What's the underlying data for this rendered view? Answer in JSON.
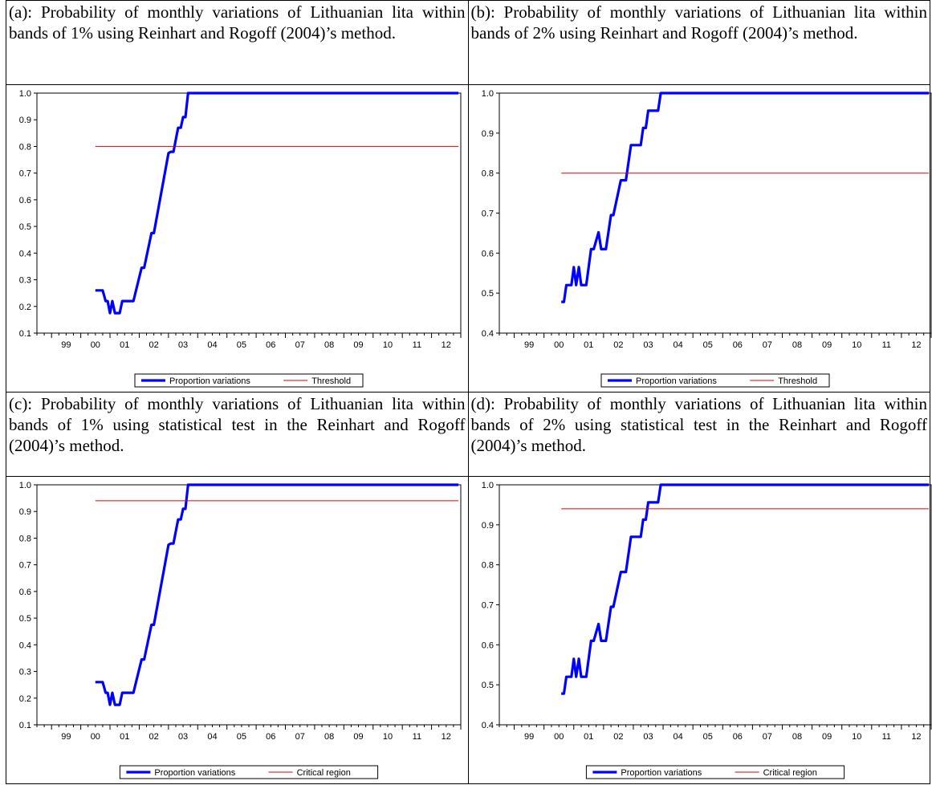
{
  "panels": [
    {
      "caption": "(a): Probability of monthly variations of Lithuanian lita within bands of 1% using Reinhart and Rogoff (2004)’s method."
    },
    {
      "caption": "(b): Probability of monthly variations of Lithuanian lita within bands of 2% using Reinhart and Rogoff (2004)’s method."
    },
    {
      "caption": "(c): Probability of monthly variations of Lithuanian lita within bands of 1% using statistical test in the Reinhart and Rogoff (2004)’s method."
    },
    {
      "caption": "(d): Probability of monthly variations of Lithuanian lita within bands of 2% using statistical test in the Reinhart and Rogoff (2004)’s method."
    }
  ],
  "colors": {
    "series": "#0000ff",
    "reference": "#e00000",
    "axis": "#000000"
  },
  "chart_data": [
    {
      "type": "line",
      "title": "",
      "xlabel": "",
      "ylabel": "",
      "xlim": [
        1998.5,
        2013.0
      ],
      "ylim": [
        0.1,
        1.0
      ],
      "yticks": [
        "0.1",
        "0.2",
        "0.3",
        "0.4",
        "0.5",
        "0.6",
        "0.7",
        "0.8",
        "0.9",
        "1.0"
      ],
      "xticks": [
        "99",
        "00",
        "01",
        "02",
        "03",
        "04",
        "05",
        "06",
        "07",
        "08",
        "09",
        "10",
        "11",
        "12"
      ],
      "legend": "bottom-center",
      "grid": false,
      "series": [
        {
          "name": "Proportion variations",
          "points": [
            [
              2000.5,
              0.26
            ],
            [
              2000.75,
              0.26
            ],
            [
              2000.85,
              0.22
            ],
            [
              2000.92,
              0.22
            ],
            [
              2001.0,
              0.175
            ],
            [
              2001.08,
              0.22
            ],
            [
              2001.17,
              0.175
            ],
            [
              2001.33,
              0.175
            ],
            [
              2001.42,
              0.22
            ],
            [
              2001.58,
              0.22
            ],
            [
              2001.8,
              0.22
            ],
            [
              2002.08,
              0.345
            ],
            [
              2002.17,
              0.345
            ],
            [
              2002.42,
              0.475
            ],
            [
              2002.5,
              0.475
            ],
            [
              2003.0,
              0.775
            ],
            [
              2003.08,
              0.78
            ],
            [
              2003.17,
              0.78
            ],
            [
              2003.33,
              0.87
            ],
            [
              2003.42,
              0.87
            ],
            [
              2003.5,
              0.91
            ],
            [
              2003.58,
              0.91
            ],
            [
              2003.67,
              1.0
            ],
            [
              2012.92,
              1.0
            ]
          ]
        },
        {
          "name": "Threshold",
          "points": [
            [
              2000.5,
              0.8
            ],
            [
              2012.92,
              0.8
            ]
          ]
        }
      ]
    },
    {
      "type": "line",
      "title": "",
      "xlabel": "",
      "ylabel": "",
      "xlim": [
        1998.5,
        2013.0
      ],
      "ylim": [
        0.4,
        1.0
      ],
      "yticks": [
        "0.4",
        "0.5",
        "0.6",
        "0.7",
        "0.8",
        "0.9",
        "1.0"
      ],
      "xticks": [
        "99",
        "00",
        "01",
        "02",
        "03",
        "04",
        "05",
        "06",
        "07",
        "08",
        "09",
        "10",
        "11",
        "12"
      ],
      "legend": "bottom-center",
      "grid": false,
      "series": [
        {
          "name": "Proportion variations",
          "points": [
            [
              2000.58,
              0.478
            ],
            [
              2000.67,
              0.478
            ],
            [
              2000.75,
              0.52
            ],
            [
              2000.92,
              0.52
            ],
            [
              2001.0,
              0.565
            ],
            [
              2001.08,
              0.52
            ],
            [
              2001.17,
              0.565
            ],
            [
              2001.25,
              0.52
            ],
            [
              2001.42,
              0.52
            ],
            [
              2001.58,
              0.61
            ],
            [
              2001.67,
              0.61
            ],
            [
              2001.83,
              0.652
            ],
            [
              2001.92,
              0.61
            ],
            [
              2002.08,
              0.61
            ],
            [
              2002.25,
              0.695
            ],
            [
              2002.33,
              0.695
            ],
            [
              2002.58,
              0.782
            ],
            [
              2002.75,
              0.782
            ],
            [
              2002.92,
              0.87
            ],
            [
              2003.25,
              0.87
            ],
            [
              2003.33,
              0.913
            ],
            [
              2003.42,
              0.913
            ],
            [
              2003.5,
              0.956
            ],
            [
              2003.83,
              0.956
            ],
            [
              2003.92,
              1.0
            ],
            [
              2012.92,
              1.0
            ]
          ]
        },
        {
          "name": "Threshold",
          "points": [
            [
              2000.58,
              0.8
            ],
            [
              2012.92,
              0.8
            ]
          ]
        }
      ]
    },
    {
      "type": "line",
      "title": "",
      "xlabel": "",
      "ylabel": "",
      "xlim": [
        1998.5,
        2013.0
      ],
      "ylim": [
        0.1,
        1.0
      ],
      "yticks": [
        "0.1",
        "0.2",
        "0.3",
        "0.4",
        "0.5",
        "0.6",
        "0.7",
        "0.8",
        "0.9",
        "1.0"
      ],
      "xticks": [
        "99",
        "00",
        "01",
        "02",
        "03",
        "04",
        "05",
        "06",
        "07",
        "08",
        "09",
        "10",
        "11",
        "12"
      ],
      "legend": "bottom-center",
      "grid": false,
      "series": [
        {
          "name": "Proportion variations",
          "points": [
            [
              2000.5,
              0.26
            ],
            [
              2000.75,
              0.26
            ],
            [
              2000.85,
              0.22
            ],
            [
              2000.92,
              0.22
            ],
            [
              2001.0,
              0.175
            ],
            [
              2001.08,
              0.22
            ],
            [
              2001.17,
              0.175
            ],
            [
              2001.33,
              0.175
            ],
            [
              2001.42,
              0.22
            ],
            [
              2001.58,
              0.22
            ],
            [
              2001.8,
              0.22
            ],
            [
              2002.08,
              0.345
            ],
            [
              2002.17,
              0.345
            ],
            [
              2002.42,
              0.475
            ],
            [
              2002.5,
              0.475
            ],
            [
              2003.0,
              0.775
            ],
            [
              2003.08,
              0.78
            ],
            [
              2003.17,
              0.78
            ],
            [
              2003.33,
              0.87
            ],
            [
              2003.42,
              0.87
            ],
            [
              2003.5,
              0.91
            ],
            [
              2003.58,
              0.91
            ],
            [
              2003.67,
              1.0
            ],
            [
              2012.92,
              1.0
            ]
          ]
        },
        {
          "name": "Critical region",
          "points": [
            [
              2000.5,
              0.94
            ],
            [
              2012.92,
              0.94
            ]
          ]
        }
      ]
    },
    {
      "type": "line",
      "title": "",
      "xlabel": "",
      "ylabel": "",
      "xlim": [
        1998.5,
        2013.0
      ],
      "ylim": [
        0.4,
        1.0
      ],
      "yticks": [
        "0.4",
        "0.5",
        "0.6",
        "0.7",
        "0.8",
        "0.9",
        "1.0"
      ],
      "xticks": [
        "99",
        "00",
        "01",
        "02",
        "03",
        "04",
        "05",
        "06",
        "07",
        "08",
        "09",
        "10",
        "11",
        "12"
      ],
      "legend": "bottom-center",
      "grid": false,
      "series": [
        {
          "name": "Proportion variations",
          "points": [
            [
              2000.58,
              0.478
            ],
            [
              2000.67,
              0.478
            ],
            [
              2000.75,
              0.52
            ],
            [
              2000.92,
              0.52
            ],
            [
              2001.0,
              0.565
            ],
            [
              2001.08,
              0.52
            ],
            [
              2001.17,
              0.565
            ],
            [
              2001.25,
              0.52
            ],
            [
              2001.42,
              0.52
            ],
            [
              2001.58,
              0.61
            ],
            [
              2001.67,
              0.61
            ],
            [
              2001.83,
              0.652
            ],
            [
              2001.92,
              0.61
            ],
            [
              2002.08,
              0.61
            ],
            [
              2002.25,
              0.695
            ],
            [
              2002.33,
              0.695
            ],
            [
              2002.58,
              0.782
            ],
            [
              2002.75,
              0.782
            ],
            [
              2002.92,
              0.87
            ],
            [
              2003.25,
              0.87
            ],
            [
              2003.33,
              0.913
            ],
            [
              2003.42,
              0.913
            ],
            [
              2003.5,
              0.956
            ],
            [
              2003.83,
              0.956
            ],
            [
              2003.92,
              1.0
            ],
            [
              2012.92,
              1.0
            ]
          ]
        },
        {
          "name": "Critical region",
          "points": [
            [
              2000.58,
              0.94
            ],
            [
              2012.92,
              0.94
            ]
          ]
        }
      ]
    }
  ]
}
